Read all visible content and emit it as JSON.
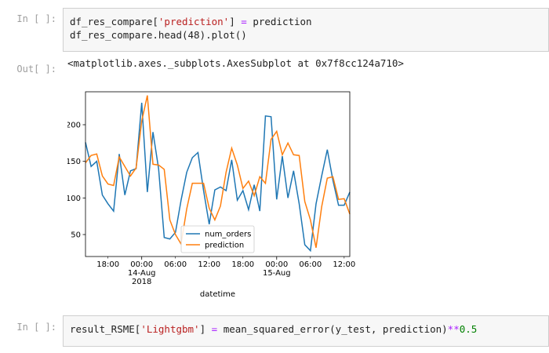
{
  "cells": [
    {
      "prompt": "In [ ]:",
      "lines": [
        [
          {
            "t": "df_res_compare["
          },
          {
            "t": "'prediction'",
            "c": "str"
          },
          {
            "t": "] "
          },
          {
            "t": "=",
            "c": "op"
          },
          {
            "t": " prediction"
          }
        ],
        [
          {
            "t": "df_res_compare.head(48).plot()"
          }
        ]
      ]
    },
    {
      "prompt": "In [ ]:",
      "lines": [
        [
          {
            "t": "result_RSME["
          },
          {
            "t": "'Lightgbm'",
            "c": "str"
          },
          {
            "t": "] "
          },
          {
            "t": "=",
            "c": "op"
          },
          {
            "t": " mean_squared_error(y_test, prediction)"
          },
          {
            "t": "**",
            "c": "op"
          },
          {
            "t": "0.5",
            "c": "num"
          }
        ]
      ]
    }
  ],
  "output": {
    "prompt": "Out[ ]:",
    "text": "<matplotlib.axes._subplots.AxesSubplot at 0x7f8cc124a710>"
  },
  "chart_data": {
    "type": "line",
    "xlabel": "datetime",
    "ylabel": "",
    "ylim": [
      20,
      245
    ],
    "yticks": [
      50,
      100,
      150,
      200
    ],
    "x_range_hours": [
      14,
      61
    ],
    "x_major_ticks": [
      {
        "h": 24,
        "label": "00:00",
        "sub1": "14-Aug",
        "sub2": "2018"
      },
      {
        "h": 48,
        "label": "00:00",
        "sub1": "15-Aug",
        "sub2": ""
      }
    ],
    "x_minor_ticks": [
      {
        "h": 18,
        "label": "18:00"
      },
      {
        "h": 30,
        "label": "06:00"
      },
      {
        "h": 36,
        "label": "12:00"
      },
      {
        "h": 42,
        "label": "18:00"
      },
      {
        "h": 54,
        "label": "06:00"
      },
      {
        "h": 60,
        "label": "12:00"
      }
    ],
    "legend": "lower-center",
    "series": [
      {
        "name": "num_orders",
        "color": "#1f77b4",
        "values": [
          176,
          143,
          150,
          104,
          92,
          82,
          160,
          104,
          137,
          140,
          230,
          108,
          190,
          140,
          46,
          44,
          53,
          97,
          135,
          155,
          162,
          110,
          64,
          111,
          115,
          110,
          152,
          97,
          110,
          84,
          118,
          82,
          212,
          211,
          98,
          157,
          100,
          137,
          92,
          36,
          28,
          92,
          130,
          166,
          124,
          90,
          90,
          108
        ]
      },
      {
        "name": "prediction",
        "color": "#ff7f0e",
        "values": [
          148,
          158,
          160,
          130,
          119,
          117,
          156,
          143,
          130,
          141,
          205,
          240,
          146,
          145,
          139,
          70,
          50,
          37,
          85,
          120,
          120,
          120,
          86,
          70,
          89,
          135,
          168,
          145,
          113,
          123,
          103,
          129,
          120,
          180,
          191,
          159,
          175,
          159,
          158,
          95,
          70,
          32,
          88,
          127,
          129,
          98,
          99,
          78
        ]
      }
    ]
  }
}
